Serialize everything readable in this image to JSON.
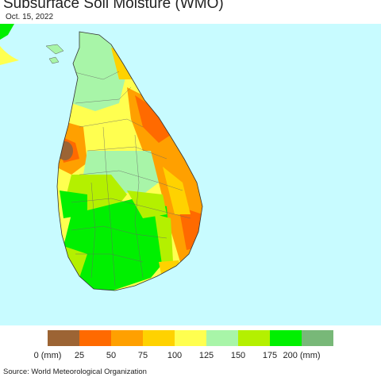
{
  "title": "Subsurface Soil Moisture (WMO)",
  "date": "Oct. 15, 2022",
  "legend": {
    "colors": [
      "#9c6434",
      "#ff6a00",
      "#ffa000",
      "#ffd200",
      "#ffff50",
      "#a8f5a8",
      "#b4f000",
      "#00f000",
      "#78b878"
    ],
    "ticks": [
      "0 (mm)",
      "25",
      "50",
      "75",
      "100",
      "125",
      "150",
      "175",
      "200 (mm)"
    ]
  },
  "source": "Source: World Meteorological Organization",
  "map": {
    "background": "#c8fbff",
    "land_colors": [
      "#9c6434",
      "#ff6a00",
      "#ffa000",
      "#ffd200",
      "#ffff50",
      "#a8f5a8",
      "#b4f000",
      "#00f000"
    ]
  }
}
